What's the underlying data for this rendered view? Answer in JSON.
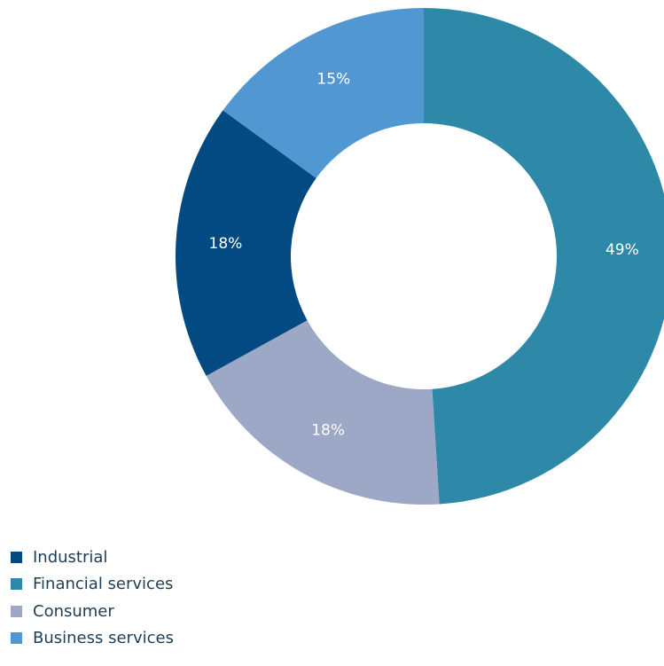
{
  "chart_data": {
    "type": "pie",
    "donut": true,
    "legend_position": "bottom-left",
    "slices": [
      {
        "name": "Financial services",
        "value": 49,
        "label": "49%",
        "color": "#2e89a9"
      },
      {
        "name": "Consumer",
        "value": 18,
        "label": "18%",
        "color": "#9da8c6"
      },
      {
        "name": "Industrial",
        "value": 18,
        "label": "18%",
        "color": "#044a82"
      },
      {
        "name": "Business services",
        "value": 15,
        "label": "15%",
        "color": "#5198d2"
      }
    ],
    "legend": [
      {
        "name": "Industrial",
        "color": "#044a82"
      },
      {
        "name": "Financial services",
        "color": "#2e89a9"
      },
      {
        "name": "Consumer",
        "color": "#9da8c6"
      },
      {
        "name": "Business services",
        "color": "#5198d2"
      }
    ]
  }
}
